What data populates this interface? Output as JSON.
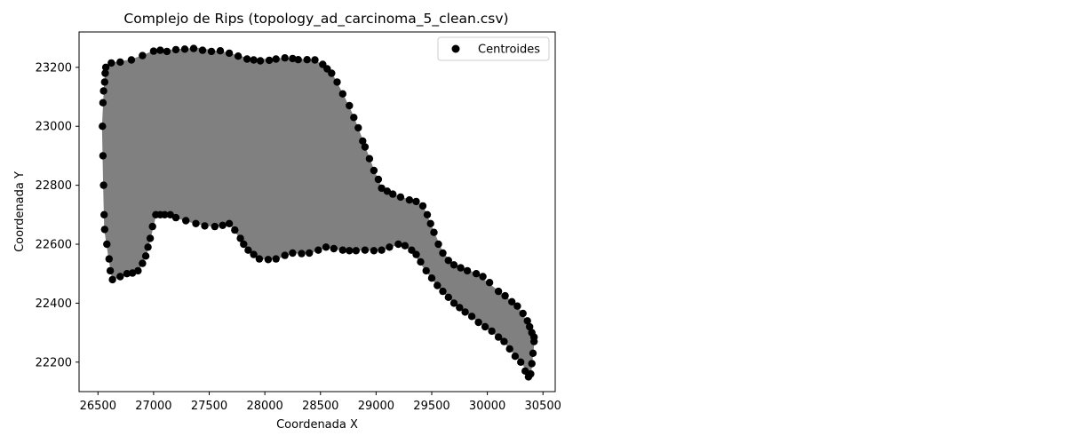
{
  "chart_data": {
    "type": "scatter",
    "title": "Complejo de Rips (topology_ad_carcinoma_5_clean.csv)",
    "xlabel": "Coordenada X",
    "ylabel": "Coordenada Y",
    "xlim": [
      26330,
      30610
    ],
    "ylim": [
      22100,
      23320
    ],
    "xticks": [
      26500,
      27000,
      27500,
      28000,
      28500,
      29000,
      29500,
      30000,
      30500
    ],
    "yticks": [
      22200,
      22400,
      22600,
      22800,
      23000,
      23200
    ],
    "legend": {
      "position": "top-right",
      "entries": [
        {
          "label": "Centroides",
          "marker": "circle",
          "color": "#000000"
        }
      ]
    },
    "colors": {
      "points": "#000000",
      "complex_fill": "#808080"
    },
    "complex_outline": [
      [
        26570,
        23200
      ],
      [
        26620,
        23215
      ],
      [
        26800,
        23225
      ],
      [
        27000,
        23255
      ],
      [
        27200,
        23260
      ],
      [
        27400,
        23265
      ],
      [
        27650,
        23250
      ],
      [
        27900,
        23225
      ],
      [
        28150,
        23230
      ],
      [
        28450,
        23225
      ],
      [
        28600,
        23180
      ],
      [
        28700,
        23110
      ],
      [
        28800,
        23030
      ],
      [
        28900,
        22930
      ],
      [
        28980,
        22850
      ],
      [
        29050,
        22790
      ],
      [
        29150,
        22770
      ],
      [
        29300,
        22750
      ],
      [
        29420,
        22730
      ],
      [
        29520,
        22640
      ],
      [
        29600,
        22570
      ],
      [
        29700,
        22530
      ],
      [
        29900,
        22500
      ],
      [
        30100,
        22440
      ],
      [
        30270,
        22390
      ],
      [
        30380,
        22320
      ],
      [
        30420,
        22270
      ],
      [
        30390,
        22160
      ],
      [
        30300,
        22200
      ],
      [
        30150,
        22270
      ],
      [
        29980,
        22320
      ],
      [
        29800,
        22370
      ],
      [
        29650,
        22420
      ],
      [
        29550,
        22460
      ],
      [
        29450,
        22510
      ],
      [
        29320,
        22580
      ],
      [
        29200,
        22600
      ],
      [
        29050,
        22580
      ],
      [
        28900,
        22580
      ],
      [
        28700,
        22580
      ],
      [
        28550,
        22590
      ],
      [
        28400,
        22570
      ],
      [
        28250,
        22570
      ],
      [
        28100,
        22550
      ],
      [
        27950,
        22550
      ],
      [
        27850,
        22580
      ],
      [
        27780,
        22620
      ],
      [
        27680,
        22670
      ],
      [
        27550,
        22660
      ],
      [
        27380,
        22670
      ],
      [
        27200,
        22690
      ],
      [
        27100,
        22700
      ],
      [
        27020,
        22700
      ],
      [
        26970,
        22620
      ],
      [
        26930,
        22560
      ],
      [
        26860,
        22510
      ],
      [
        26760,
        22500
      ],
      [
        26630,
        22480
      ],
      [
        26600,
        22550
      ],
      [
        26560,
        22650
      ],
      [
        26550,
        22800
      ],
      [
        26540,
        23000
      ],
      [
        26560,
        23150
      ]
    ],
    "points": [
      [
        26570,
        23200
      ],
      [
        26620,
        23215
      ],
      [
        26700,
        23218
      ],
      [
        26800,
        23225
      ],
      [
        26900,
        23240
      ],
      [
        27000,
        23255
      ],
      [
        27060,
        23258
      ],
      [
        27120,
        23254
      ],
      [
        27200,
        23260
      ],
      [
        27280,
        23262
      ],
      [
        27360,
        23264
      ],
      [
        27440,
        23258
      ],
      [
        27520,
        23254
      ],
      [
        27600,
        23256
      ],
      [
        27680,
        23248
      ],
      [
        27760,
        23238
      ],
      [
        27840,
        23228
      ],
      [
        27900,
        23225
      ],
      [
        27960,
        23222
      ],
      [
        28040,
        23224
      ],
      [
        28100,
        23228
      ],
      [
        28180,
        23232
      ],
      [
        28250,
        23230
      ],
      [
        28300,
        23226
      ],
      [
        28380,
        23226
      ],
      [
        28450,
        23225
      ],
      [
        28520,
        23210
      ],
      [
        28560,
        23195
      ],
      [
        28600,
        23180
      ],
      [
        28650,
        23150
      ],
      [
        28700,
        23110
      ],
      [
        28760,
        23070
      ],
      [
        28800,
        23030
      ],
      [
        28840,
        22995
      ],
      [
        28880,
        22950
      ],
      [
        28900,
        22930
      ],
      [
        28940,
        22890
      ],
      [
        28980,
        22850
      ],
      [
        29020,
        22820
      ],
      [
        29050,
        22790
      ],
      [
        29100,
        22780
      ],
      [
        29150,
        22770
      ],
      [
        29220,
        22760
      ],
      [
        29300,
        22750
      ],
      [
        29360,
        22745
      ],
      [
        29420,
        22730
      ],
      [
        29460,
        22700
      ],
      [
        29490,
        22670
      ],
      [
        29520,
        22640
      ],
      [
        29560,
        22600
      ],
      [
        29600,
        22570
      ],
      [
        29650,
        22545
      ],
      [
        29700,
        22530
      ],
      [
        29760,
        22520
      ],
      [
        29820,
        22510
      ],
      [
        29900,
        22500
      ],
      [
        29960,
        22490
      ],
      [
        30020,
        22470
      ],
      [
        30100,
        22440
      ],
      [
        30160,
        22425
      ],
      [
        30220,
        22405
      ],
      [
        30270,
        22390
      ],
      [
        30320,
        22365
      ],
      [
        30360,
        22340
      ],
      [
        30380,
        22320
      ],
      [
        30400,
        22300
      ],
      [
        30420,
        22285
      ],
      [
        30420,
        22270
      ],
      [
        30410,
        22230
      ],
      [
        30400,
        22195
      ],
      [
        30390,
        22160
      ],
      [
        30370,
        22150
      ],
      [
        30340,
        22170
      ],
      [
        30300,
        22200
      ],
      [
        30250,
        22220
      ],
      [
        30200,
        22245
      ],
      [
        30150,
        22270
      ],
      [
        30100,
        22285
      ],
      [
        30040,
        22305
      ],
      [
        29980,
        22320
      ],
      [
        29920,
        22335
      ],
      [
        29860,
        22355
      ],
      [
        29800,
        22370
      ],
      [
        29750,
        22385
      ],
      [
        29700,
        22400
      ],
      [
        29650,
        22420
      ],
      [
        29600,
        22440
      ],
      [
        29550,
        22460
      ],
      [
        29500,
        22485
      ],
      [
        29450,
        22510
      ],
      [
        29400,
        22540
      ],
      [
        29360,
        22565
      ],
      [
        29320,
        22580
      ],
      [
        29260,
        22595
      ],
      [
        29200,
        22600
      ],
      [
        29120,
        22590
      ],
      [
        29050,
        22580
      ],
      [
        28980,
        22578
      ],
      [
        28900,
        22580
      ],
      [
        28820,
        22578
      ],
      [
        28760,
        22578
      ],
      [
        28700,
        22580
      ],
      [
        28620,
        22585
      ],
      [
        28550,
        22590
      ],
      [
        28480,
        22580
      ],
      [
        28400,
        22570
      ],
      [
        28330,
        22568
      ],
      [
        28250,
        22570
      ],
      [
        28180,
        22562
      ],
      [
        28100,
        22550
      ],
      [
        28030,
        22548
      ],
      [
        27950,
        22550
      ],
      [
        27900,
        22565
      ],
      [
        27850,
        22580
      ],
      [
        27810,
        22600
      ],
      [
        27780,
        22620
      ],
      [
        27730,
        22648
      ],
      [
        27680,
        22670
      ],
      [
        27620,
        22664
      ],
      [
        27550,
        22660
      ],
      [
        27460,
        22662
      ],
      [
        27380,
        22670
      ],
      [
        27290,
        22680
      ],
      [
        27200,
        22690
      ],
      [
        27150,
        22700
      ],
      [
        27100,
        22700
      ],
      [
        27060,
        22700
      ],
      [
        27020,
        22700
      ],
      [
        26990,
        22660
      ],
      [
        26970,
        22620
      ],
      [
        26950,
        22590
      ],
      [
        26930,
        22560
      ],
      [
        26900,
        22535
      ],
      [
        26860,
        22510
      ],
      [
        26810,
        22502
      ],
      [
        26760,
        22500
      ],
      [
        26700,
        22490
      ],
      [
        26630,
        22480
      ],
      [
        26610,
        22510
      ],
      [
        26600,
        22550
      ],
      [
        26580,
        22600
      ],
      [
        26560,
        22650
      ],
      [
        26555,
        22700
      ],
      [
        26550,
        22800
      ],
      [
        26545,
        22900
      ],
      [
        26540,
        23000
      ],
      [
        26545,
        23080
      ],
      [
        26550,
        23120
      ],
      [
        26560,
        23150
      ],
      [
        26565,
        23180
      ]
    ]
  }
}
